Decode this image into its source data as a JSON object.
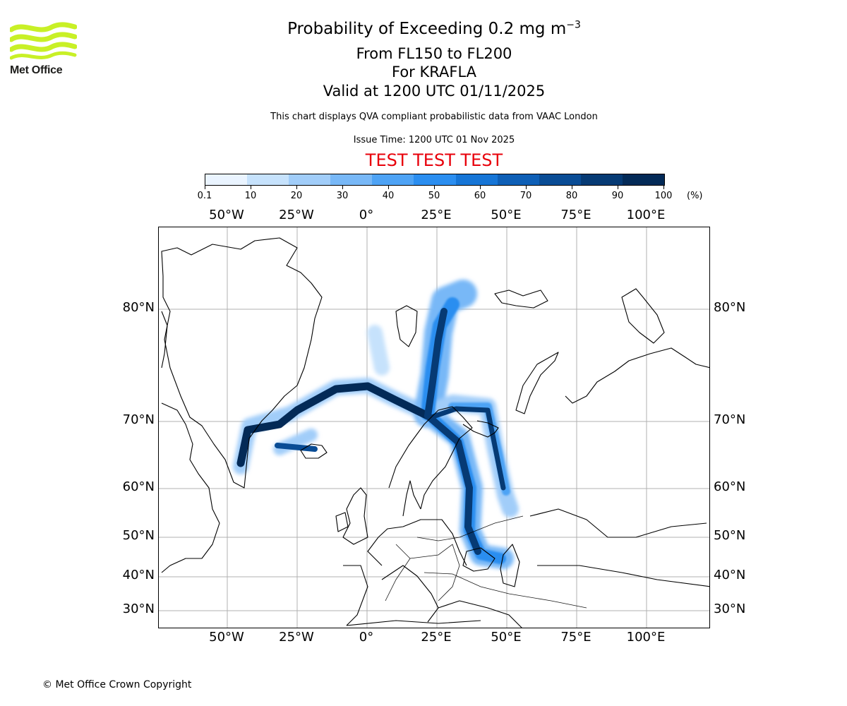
{
  "header": {
    "title_main": "Probability of Exceeding 0.2 mg m",
    "title_sup": "−3",
    "levels": "From FL150 to FL200",
    "volcano": "For KRAFLA",
    "valid": "Valid at 1200 UTC 01/11/2025",
    "note": "This chart displays QVA compliant probabilistic data from VAAC London",
    "issue": "Issue Time: 1200 UTC 01 Nov 2025",
    "test_banner": "TEST TEST TEST"
  },
  "logo": {
    "text": "Met Office",
    "color": "#c8f026"
  },
  "footer": {
    "copyright": "© Met Office Crown Copyright"
  },
  "colorbar": {
    "ticks": [
      "0.1",
      "10",
      "20",
      "30",
      "40",
      "50",
      "60",
      "70",
      "80",
      "90",
      "100"
    ],
    "unit": "(%)",
    "colors": [
      "#eaf4ff",
      "#c6e2fc",
      "#a1cdf9",
      "#78b8f7",
      "#4ea3f5",
      "#2b8ef0",
      "#1675d6",
      "#0e5fb6",
      "#094c95",
      "#063a74",
      "#032a57"
    ]
  },
  "map": {
    "lon_labels": [
      "50°W",
      "25°W",
      "0°",
      "25°E",
      "50°E",
      "75°E",
      "100°E"
    ],
    "lat_labels": [
      "80°N",
      "70°N",
      "60°N",
      "50°N",
      "40°N",
      "30°N"
    ],
    "gridline_color": "#b0b0b0",
    "coast_color": "#000000"
  }
}
